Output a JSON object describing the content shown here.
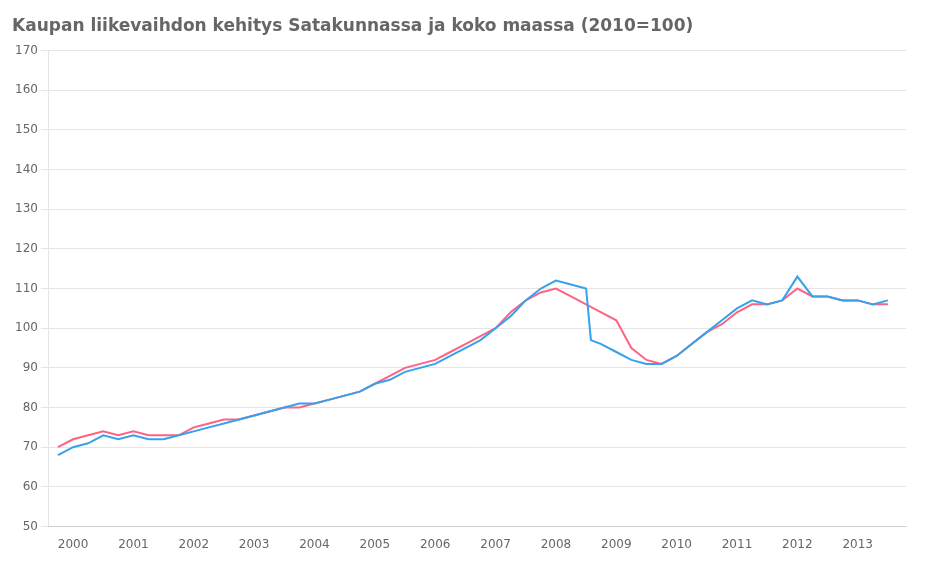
{
  "chart_data": {
    "type": "line",
    "title": "Kaupan liikevaihdon kehitys Satakunnassa ja koko maassa (2010=100)",
    "series": [
      {
        "x": [
          1999.75,
          2000.0,
          2000.25,
          2000.5,
          2000.75,
          2001.0,
          2001.25,
          2001.5,
          2001.75,
          2002.0,
          2002.25,
          2002.5,
          2002.75,
          2003.0,
          2003.25,
          2003.5,
          2003.75,
          2004.0,
          2004.25,
          2004.5,
          2004.75,
          2005.0,
          2005.25,
          2005.5,
          2005.75,
          2006.0,
          2006.25,
          2006.5,
          2006.75,
          2007.0,
          2007.25,
          2007.5,
          2007.75,
          2008.0,
          2008.25,
          2008.5,
          2008.58,
          2008.75,
          2009.0,
          2009.25,
          2009.5,
          2009.75,
          2010.0,
          2010.25,
          2010.5,
          2010.75,
          2011.0,
          2011.25,
          2011.5,
          2011.75,
          2012.0,
          2012.25,
          2012.5,
          2012.75,
          2013.0,
          2013.25,
          2013.5
        ],
        "values": [
          68,
          70,
          71,
          73,
          72,
          73,
          72,
          72,
          73,
          74,
          75,
          76,
          77,
          78,
          79,
          80,
          81,
          81,
          82,
          83,
          84,
          86,
          87,
          89,
          90,
          91,
          93,
          95,
          97,
          100,
          103,
          107,
          110,
          112,
          111,
          110,
          97,
          96,
          94,
          92,
          91,
          91,
          93,
          96,
          99,
          102,
          105,
          107,
          106,
          107,
          113,
          108,
          108,
          107,
          107,
          106,
          107
        ]
      },
      {
        "x": [
          1999.75,
          2000.0,
          2000.25,
          2000.5,
          2000.75,
          2001.0,
          2001.25,
          2001.5,
          2001.75,
          2002.0,
          2002.25,
          2002.5,
          2002.75,
          2003.0,
          2003.25,
          2003.5,
          2003.75,
          2004.0,
          2004.25,
          2004.5,
          2004.75,
          2005.0,
          2005.25,
          2005.5,
          2005.75,
          2006.0,
          2006.25,
          2006.5,
          2006.75,
          2007.0,
          2007.25,
          2007.5,
          2007.75,
          2008.0,
          2008.25,
          2008.5,
          2008.75,
          2009.0,
          2009.25,
          2009.5,
          2009.75,
          2010.0,
          2010.25,
          2010.5,
          2010.75,
          2011.0,
          2011.25,
          2011.5,
          2011.75,
          2012.0,
          2012.25,
          2012.5,
          2012.75,
          2013.0,
          2013.25,
          2013.5
        ],
        "values": [
          70,
          72,
          73,
          74,
          73,
          74,
          73,
          73,
          73,
          75,
          76,
          77,
          77,
          78,
          79,
          80,
          80,
          81,
          82,
          83,
          84,
          86,
          88,
          90,
          91,
          92,
          94,
          96,
          98,
          100,
          104,
          107,
          109,
          110,
          108,
          106,
          104,
          102,
          95,
          92,
          91,
          93,
          96,
          99,
          101,
          104,
          106,
          106,
          107,
          110,
          108,
          108,
          107,
          107,
          106,
          106
        ]
      }
    ],
    "xlim": [
      1999.6,
      2013.8
    ],
    "xticks": [
      2000,
      2001,
      2002,
      2003,
      2004,
      2005,
      2006,
      2007,
      2008,
      2009,
      2010,
      2011,
      2012,
      2013
    ],
    "ylim": [
      50,
      170
    ],
    "yticks": [
      50,
      60,
      70,
      80,
      90,
      100,
      110,
      120,
      130,
      140,
      150,
      160,
      170
    ],
    "grid": "y"
  }
}
